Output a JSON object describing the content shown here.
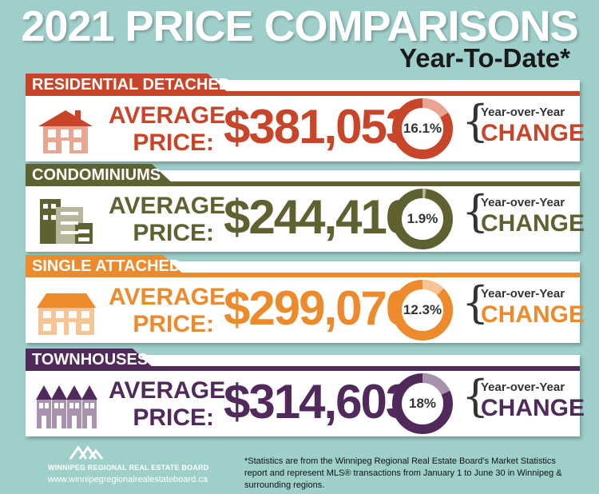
{
  "title": "2021 PRICE COMPARISONS",
  "subtitle": "Year-To-Date*",
  "avg_line1": "AVERAGE",
  "avg_line2": "PRICE:",
  "yoy_label": "Year-over-Year",
  "change_label": "CHANGE",
  "categories": [
    {
      "name": "RESIDENTIAL DETACHED",
      "price": "$381,053",
      "change": "16.1%",
      "change_value": 16.1,
      "color": "#c8452a",
      "light": "#e8a58f",
      "icon": "detached-house-icon"
    },
    {
      "name": "CONDOMINIUMS",
      "price": "$244,416",
      "change": "1.9%",
      "change_value": 1.9,
      "color": "#5f6131",
      "light": "#b8b79c",
      "icon": "condo-building-icon"
    },
    {
      "name": "SINGLE ATTACHED",
      "price": "$299,070",
      "change": "12.3%",
      "change_value": 12.3,
      "color": "#ec8a2c",
      "light": "#f6c495",
      "icon": "attached-house-icon"
    },
    {
      "name": "TOWNHOUSES",
      "price": "$314,603",
      "change": "18%",
      "change_value": 18,
      "color": "#4f2a5a",
      "light": "#a892ad",
      "icon": "townhouse-icon"
    }
  ],
  "footer": {
    "board_name": "WINNIPEG REGIONAL REAL ESTATE BOARD",
    "url": "www.winnipegregionalrealestateboard.ca",
    "note": "*Statistics are from the Winnipeg Regional Real Estate Board’s Market Statistics report and represent MLS® transactions from January 1 to June 30 in Winnipeg & surrounding regions."
  }
}
